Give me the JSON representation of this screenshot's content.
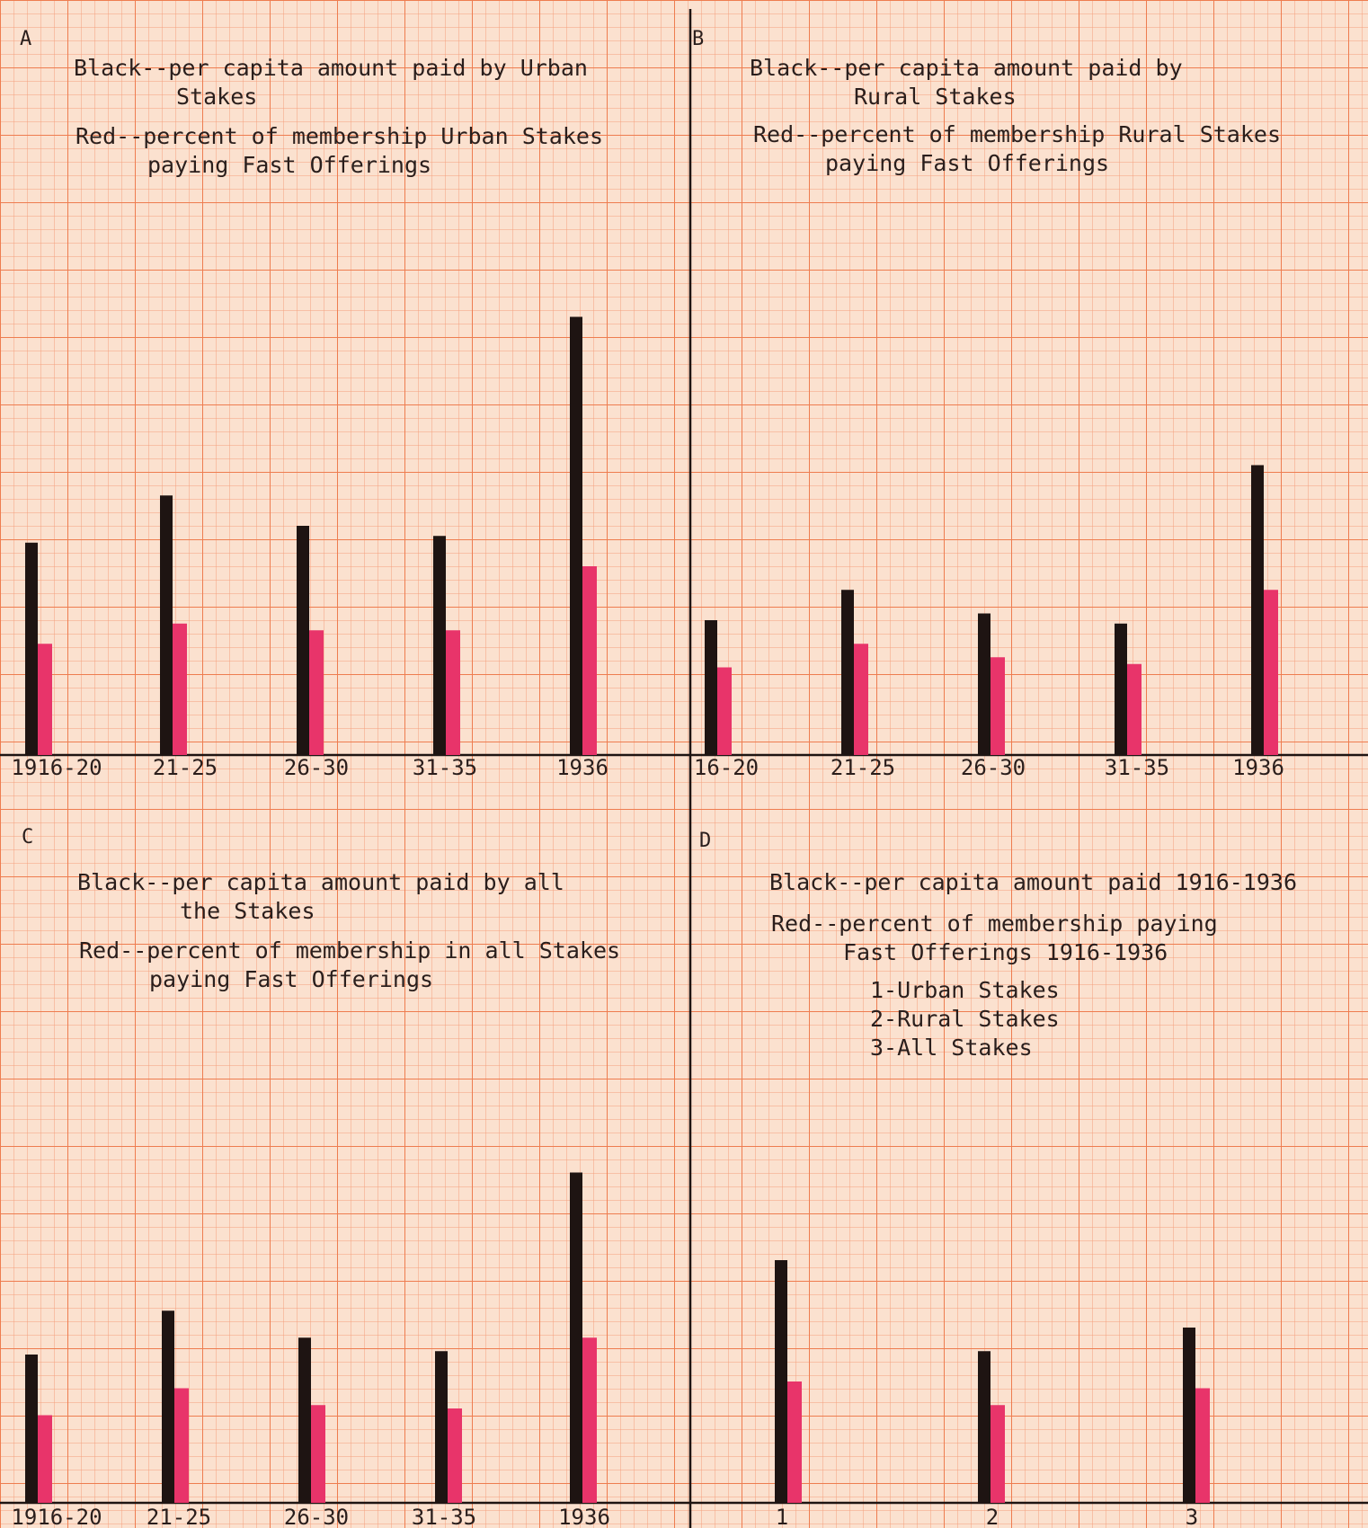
{
  "chart_data": [
    {
      "type": "bar",
      "panel_letter": "A",
      "title_lines": [
        [
          "Black--per capita amount paid by Urban",
          "Stakes"
        ],
        [
          "Red--percent of membership Urban Stakes",
          "paying Fast Offerings"
        ]
      ],
      "categories": [
        "1916-20",
        "21-25",
        "26-30",
        "31-35",
        "1936"
      ],
      "series": [
        {
          "name": "Black",
          "color": "#1e1412",
          "values": [
            31.5,
            38.5,
            34.0,
            32.5,
            65.0
          ]
        },
        {
          "name": "Red",
          "color": "#e8346a",
          "values": [
            16.5,
            19.5,
            18.5,
            18.5,
            28.0
          ]
        }
      ],
      "ylim": [
        0,
        70
      ]
    },
    {
      "type": "bar",
      "panel_letter": "B",
      "title_lines": [
        [
          "Black--per capita amount paid by",
          "Rural Stakes"
        ],
        [
          "Red--percent of membership Rural Stakes",
          "paying Fast Offerings"
        ]
      ],
      "categories": [
        "16-20",
        "21-25",
        "26-30",
        "31-35",
        "1936"
      ],
      "series": [
        {
          "name": "Black",
          "color": "#1e1412",
          "values": [
            20.0,
            24.5,
            21.0,
            19.5,
            43.0
          ]
        },
        {
          "name": "Red",
          "color": "#e8346a",
          "values": [
            13.0,
            16.5,
            14.5,
            13.5,
            24.5
          ]
        }
      ],
      "ylim": [
        0,
        70
      ]
    },
    {
      "type": "bar",
      "panel_letter": "C",
      "title_lines": [
        [
          "Black--per capita amount paid by all",
          "the Stakes"
        ],
        [
          "Red--percent of membership in all Stakes",
          "paying Fast Offerings"
        ]
      ],
      "categories": [
        "1916-20",
        "21-25",
        "26-30",
        "31-35",
        "1936"
      ],
      "series": [
        {
          "name": "Black",
          "color": "#1e1412",
          "values": [
            22.0,
            28.5,
            24.5,
            22.5,
            49.0
          ]
        },
        {
          "name": "Red",
          "color": "#e8346a",
          "values": [
            13.0,
            17.0,
            14.5,
            14.0,
            24.5
          ]
        }
      ],
      "ylim": [
        0,
        70
      ]
    },
    {
      "type": "bar",
      "panel_letter": "D",
      "title_lines": [
        [
          "Black--per capita amount paid 1916-1936"
        ],
        [
          "Red--percent of membership paying",
          "Fast Offerings 1916-1936"
        ],
        [
          "1-Urban Stakes",
          "2-Rural Stakes",
          "3-All Stakes"
        ]
      ],
      "categories": [
        "1",
        "2",
        "3"
      ],
      "series": [
        {
          "name": "Black",
          "color": "#1e1412",
          "values": [
            36.0,
            22.5,
            26.0
          ]
        },
        {
          "name": "Red",
          "color": "#e8346a",
          "values": [
            18.0,
            14.5,
            17.0
          ]
        }
      ],
      "ylim": [
        0,
        70
      ]
    }
  ]
}
